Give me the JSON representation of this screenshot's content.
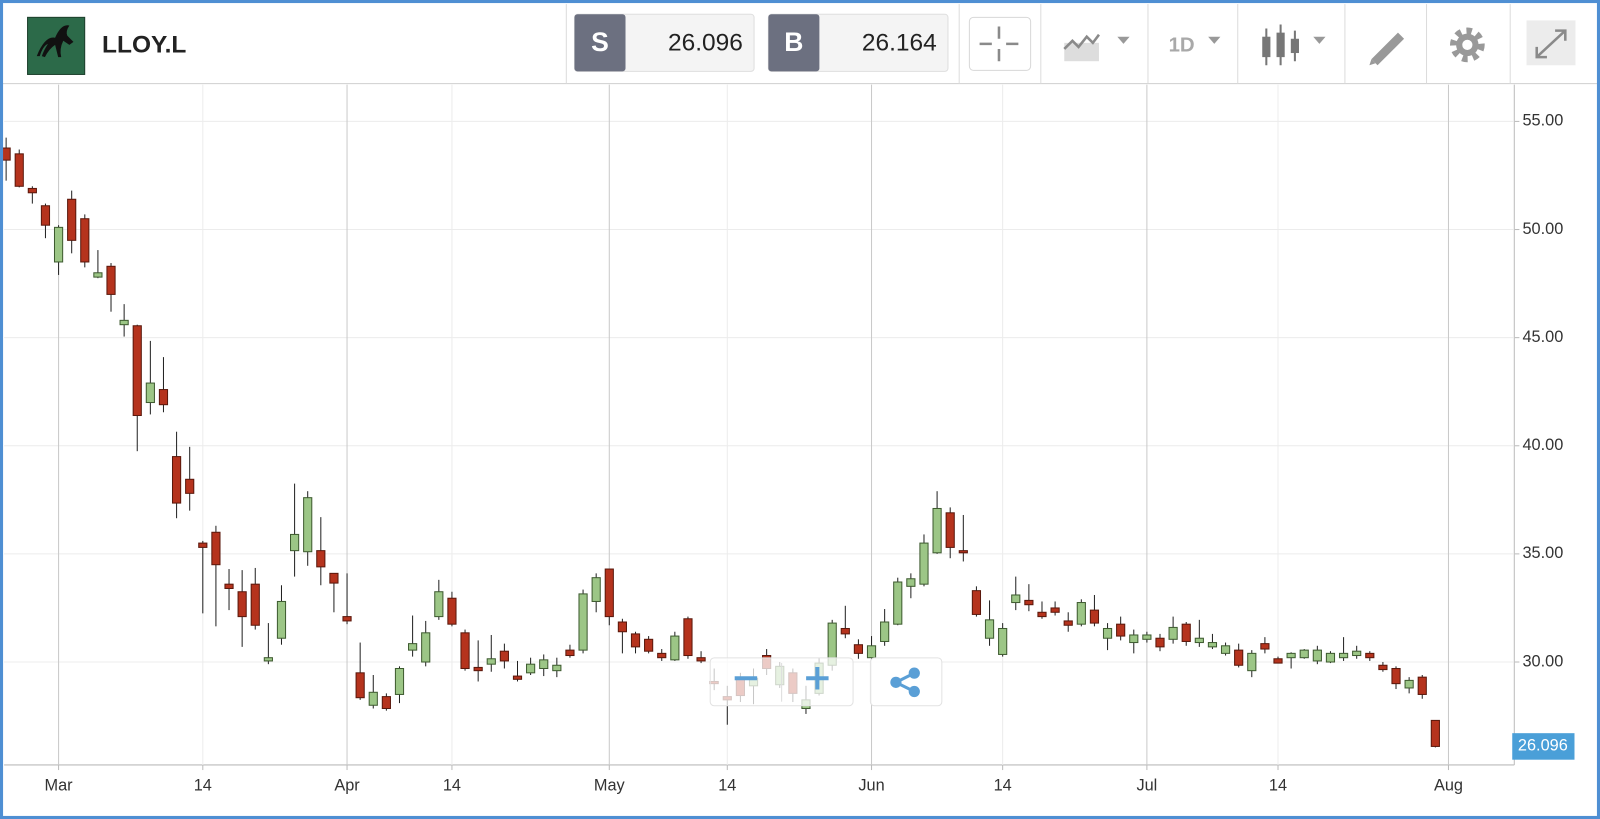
{
  "header": {
    "symbol": "LLOY.L",
    "sell": {
      "label": "S",
      "price": 26.096
    },
    "buy": {
      "label": "B",
      "price": 26.164
    },
    "interval": "1D"
  },
  "chart_data": {
    "type": "candlestick",
    "categories": [
      null,
      null,
      null,
      null,
      "Mar",
      null,
      null,
      null,
      null,
      null,
      null,
      null,
      null,
      null,
      null,
      "14",
      null,
      null,
      null,
      null,
      null,
      null,
      null,
      null,
      null,
      null,
      "Apr",
      null,
      null,
      null,
      null,
      null,
      null,
      null,
      "14",
      null,
      null,
      null,
      null,
      null,
      null,
      null,
      null,
      null,
      null,
      null,
      "May",
      null,
      null,
      null,
      null,
      null,
      null,
      null,
      null,
      "14",
      null,
      null,
      null,
      null,
      null,
      null,
      null,
      null,
      null,
      null,
      "Jun",
      null,
      null,
      null,
      null,
      null,
      null,
      null,
      null,
      null,
      "14",
      null,
      null,
      null,
      null,
      null,
      null,
      null,
      null,
      null,
      null,
      "Jul",
      null,
      null,
      null,
      null,
      null,
      null,
      null,
      null,
      null,
      "14",
      null,
      null,
      null,
      null,
      null,
      null,
      null,
      null,
      null,
      null,
      null,
      null,
      "Aug"
    ],
    "open": [
      53.77,
      53.5,
      51.9,
      51.1,
      48.5,
      51.4,
      50.5,
      47.8,
      48.3,
      45.6,
      45.55,
      42.0,
      42.6,
      39.5,
      38.45,
      35.5,
      36.0,
      33.6,
      33.25,
      33.6,
      30.05,
      31.1,
      35.15,
      35.1,
      35.15,
      34.1,
      32.1,
      29.5,
      28.0,
      28.4,
      28.5,
      30.55,
      30.0,
      32.1,
      32.95,
      31.35,
      29.75,
      29.9,
      30.5,
      29.35,
      29.5,
      29.7,
      29.6,
      30.55,
      30.55,
      32.8,
      34.3,
      31.85,
      31.3,
      31.05,
      30.4,
      30.1,
      32.0,
      30.2,
      29.1,
      28.4,
      29.25,
      28.9,
      30.3,
      28.95,
      29.5,
      27.85,
      28.55,
      29.85,
      31.55,
      30.8,
      30.2,
      30.95,
      31.75,
      33.5,
      33.6,
      35.05,
      36.9,
      35.15,
      33.3,
      31.1,
      30.35,
      32.75,
      32.85,
      32.3,
      32.5,
      31.9,
      31.75,
      32.4,
      31.1,
      31.75,
      30.9,
      31.05,
      31.1,
      31.05,
      31.75,
      30.9,
      30.7,
      30.4,
      30.55,
      29.6,
      30.85,
      30.15,
      30.2,
      30.2,
      30.05,
      30.0,
      30.2,
      30.3,
      30.4,
      29.85,
      29.7,
      28.8,
      29.3,
      27.3,
      null
    ],
    "high": [
      54.25,
      53.7,
      52.0,
      51.2,
      50.2,
      51.8,
      50.7,
      49.05,
      48.45,
      46.55,
      45.6,
      44.85,
      44.1,
      40.65,
      39.95,
      35.6,
      36.3,
      34.3,
      34.25,
      34.35,
      31.8,
      33.55,
      38.25,
      37.9,
      36.7,
      34.1,
      34.1,
      30.9,
      29.4,
      28.55,
      29.8,
      32.15,
      31.9,
      33.8,
      33.25,
      31.5,
      31.0,
      31.25,
      30.85,
      30.05,
      30.2,
      30.35,
      30.2,
      30.8,
      33.35,
      34.1,
      34.3,
      32.0,
      31.4,
      31.2,
      30.6,
      31.4,
      32.1,
      30.5,
      29.7,
      28.9,
      29.5,
      29.7,
      30.6,
      30.0,
      29.7,
      28.9,
      30.2,
      31.95,
      32.6,
      31.05,
      31.2,
      32.45,
      33.9,
      34.1,
      35.9,
      37.9,
      37.15,
      36.8,
      33.5,
      32.85,
      31.8,
      33.95,
      33.6,
      32.8,
      32.8,
      32.3,
      32.9,
      33.1,
      31.8,
      32.1,
      31.5,
      31.4,
      31.3,
      32.1,
      31.85,
      31.95,
      31.3,
      30.9,
      30.85,
      30.55,
      31.15,
      30.25,
      30.45,
      30.6,
      30.75,
      30.5,
      31.15,
      30.75,
      30.5,
      30.0,
      29.8,
      29.3,
      29.4,
      27.3,
      null
    ],
    "low": [
      52.26,
      51.95,
      51.2,
      49.6,
      47.9,
      48.9,
      48.25,
      47.75,
      46.2,
      45.05,
      39.75,
      41.45,
      41.55,
      36.65,
      37.0,
      32.25,
      31.65,
      32.4,
      30.7,
      31.5,
      29.9,
      30.8,
      33.95,
      34.45,
      33.55,
      32.3,
      31.75,
      28.25,
      27.85,
      27.75,
      28.1,
      30.25,
      29.8,
      31.95,
      31.65,
      29.6,
      29.1,
      29.55,
      29.7,
      29.1,
      29.4,
      29.35,
      29.3,
      30.2,
      30.4,
      32.3,
      31.7,
      30.4,
      30.4,
      30.4,
      30.05,
      30.05,
      30.15,
      29.95,
      28.7,
      27.1,
      28.15,
      28.05,
      29.4,
      28.8,
      28.15,
      27.6,
      28.45,
      29.6,
      31.1,
      30.15,
      30.1,
      30.75,
      31.7,
      32.95,
      33.5,
      35.0,
      34.8,
      34.65,
      32.1,
      30.75,
      30.25,
      32.4,
      32.35,
      32.0,
      32.15,
      31.4,
      31.65,
      31.65,
      30.55,
      31.0,
      30.4,
      30.9,
      30.5,
      30.85,
      30.75,
      30.7,
      30.6,
      30.3,
      29.75,
      29.3,
      30.4,
      29.95,
      29.7,
      30.15,
      29.9,
      29.95,
      30.05,
      30.15,
      30.05,
      29.55,
      28.75,
      28.55,
      28.3,
      26.05,
      null
    ],
    "close": [
      53.21,
      52.0,
      51.7,
      50.2,
      50.1,
      49.5,
      48.5,
      48.0,
      47.0,
      45.8,
      41.4,
      42.9,
      41.9,
      37.35,
      37.8,
      35.3,
      34.5,
      33.4,
      32.1,
      31.7,
      30.2,
      32.8,
      35.9,
      37.6,
      34.4,
      33.65,
      31.9,
      28.35,
      28.6,
      27.85,
      29.7,
      30.85,
      31.35,
      33.25,
      31.75,
      29.7,
      29.6,
      30.15,
      30.05,
      29.2,
      29.9,
      30.1,
      29.85,
      30.3,
      33.15,
      33.9,
      32.1,
      31.4,
      30.7,
      30.5,
      30.2,
      31.2,
      30.3,
      30.05,
      29.0,
      28.25,
      28.45,
      29.25,
      29.7,
      29.8,
      28.55,
      28.25,
      29.95,
      31.8,
      31.3,
      30.4,
      30.75,
      31.85,
      33.7,
      33.85,
      35.5,
      37.1,
      35.3,
      35.05,
      32.2,
      31.95,
      31.55,
      33.1,
      32.65,
      32.1,
      32.3,
      31.7,
      32.75,
      31.8,
      31.55,
      31.2,
      31.25,
      31.25,
      30.7,
      31.6,
      30.95,
      31.1,
      30.9,
      30.75,
      29.85,
      30.4,
      30.6,
      29.95,
      30.4,
      30.55,
      30.55,
      30.4,
      30.4,
      30.5,
      30.2,
      29.65,
      29.0,
      29.15,
      28.5,
      26.096,
      null
    ],
    "up_color": "#9cc686",
    "down_color": "#b5331d",
    "last_price": 26.096,
    "ylim": [
      25.24,
      56.7
    ],
    "yticks": [
      {
        "value": 30,
        "label": "30.00"
      },
      {
        "value": 35,
        "label": "35.00"
      },
      {
        "value": 40,
        "label": "40.00"
      },
      {
        "value": 45,
        "label": "45.00"
      },
      {
        "value": 50,
        "label": "50.00"
      },
      {
        "value": 55,
        "label": "55.00"
      }
    ],
    "grid": true
  }
}
